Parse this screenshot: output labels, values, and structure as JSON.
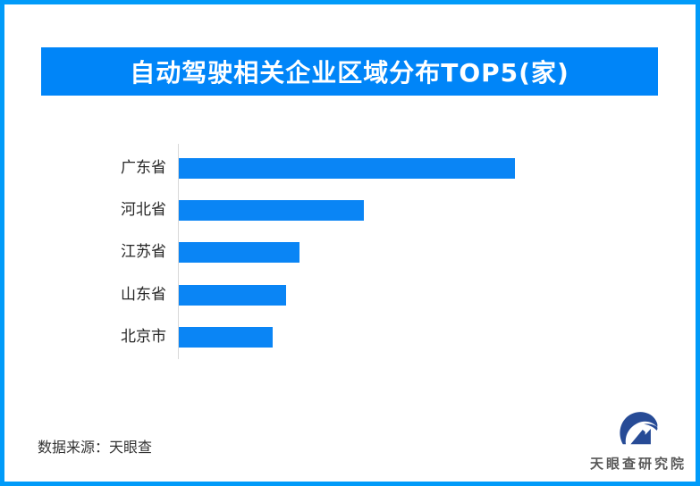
{
  "page": {
    "border_color": "#019bf9",
    "background_color": "#ffffff"
  },
  "header": {
    "title": "自动驾驶相关企业区域分布TOP5(家)",
    "banner_color": "#0085f8",
    "title_color": "#ffffff"
  },
  "chart_data": {
    "type": "bar",
    "orientation": "horizontal",
    "title": "自动驾驶相关企业区域分布TOP5(家)",
    "categories": [
      "广东省",
      "河北省",
      "江苏省",
      "山东省",
      "北京市"
    ],
    "values": [
      100,
      55,
      36,
      32,
      28
    ],
    "values_note": "no numeric labels or axis ticks visible; values are relative bar lengths as % of longest bar",
    "xlabel": "",
    "ylabel": "",
    "grid": "off",
    "legend": "none",
    "bar_color": "#0a85f5",
    "axis_line_color": "#d9d9d9",
    "label_color": "#262626"
  },
  "footer": {
    "source_label": "数据来源：天眼查",
    "brand_name": "天眼查研究院",
    "brand_logo": "tianyancha-eye-logo",
    "brand_logo_color": "#274b96",
    "brand_text_color": "#595959"
  }
}
